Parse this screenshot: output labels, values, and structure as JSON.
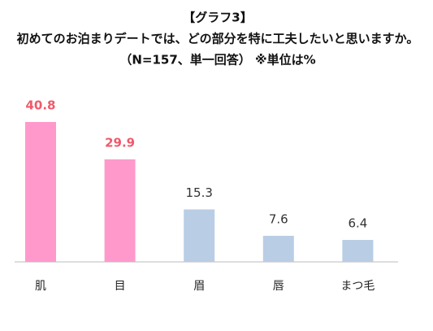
{
  "chart_data": {
    "type": "bar",
    "title": [
      "【グラフ3】",
      "初めてのお泊まりデートでは、どの部分を特に工夫したいと思いますか。",
      "（N=157、単一回答） ※単位は%"
    ],
    "categories": [
      "肌",
      "目",
      "眉",
      "唇",
      "まつ毛"
    ],
    "values": [
      40.8,
      29.9,
      15.3,
      7.6,
      6.4
    ],
    "colors": [
      "#ff99cc",
      "#ff99cc",
      "#b9cde5",
      "#b9cde5",
      "#b9cde5"
    ],
    "label_colors": [
      "#ef5a6a",
      "#ef5a6a",
      "#333333",
      "#333333",
      "#333333"
    ],
    "highlight": [
      true,
      true,
      false,
      false,
      false
    ]
  }
}
